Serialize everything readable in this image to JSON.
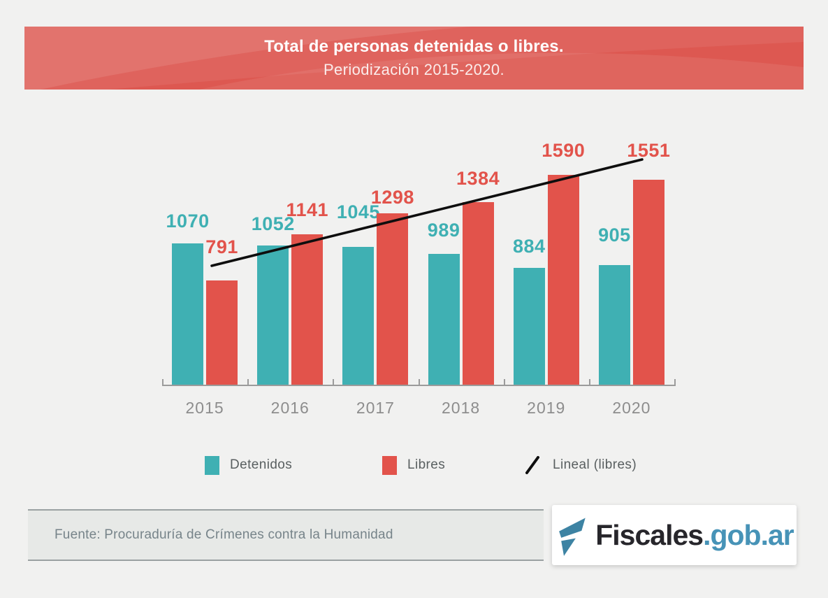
{
  "banner": {
    "title": "Total de personas detenidas o libres.",
    "subtitle": "Periodización 2015-2020.",
    "bg_color": "#dd5851"
  },
  "chart_data": {
    "type": "bar",
    "categories": [
      "2015",
      "2016",
      "2017",
      "2018",
      "2019",
      "2020"
    ],
    "series": [
      {
        "name": "Detenidos",
        "color": "#3fb0b3",
        "values": [
          1070,
          1052,
          1045,
          989,
          884,
          905
        ]
      },
      {
        "name": "Libres",
        "color": "#e2534b",
        "values": [
          791,
          1141,
          1298,
          1384,
          1590,
          1551
        ]
      }
    ],
    "trendline": {
      "name": "Lineal (libres)",
      "color": "#0e0e0e",
      "applies_to": "Libres"
    },
    "title": "Total de personas detenidas o libres. Periodización 2015-2020.",
    "xlabel": "",
    "ylabel": "",
    "ylim": [
      0,
      1700
    ],
    "grid": false,
    "legend_position": "bottom",
    "data_labels": true
  },
  "footer": {
    "source": "Fuente: Procuraduría de Crímenes contra la Humanidad"
  },
  "logo": {
    "name": "Fiscales.gob.ar",
    "text_dark": "Fiscales",
    "text_accent": ".gob.ar",
    "accent_color": "#4793b7",
    "icon_color": "#3d83a3"
  }
}
